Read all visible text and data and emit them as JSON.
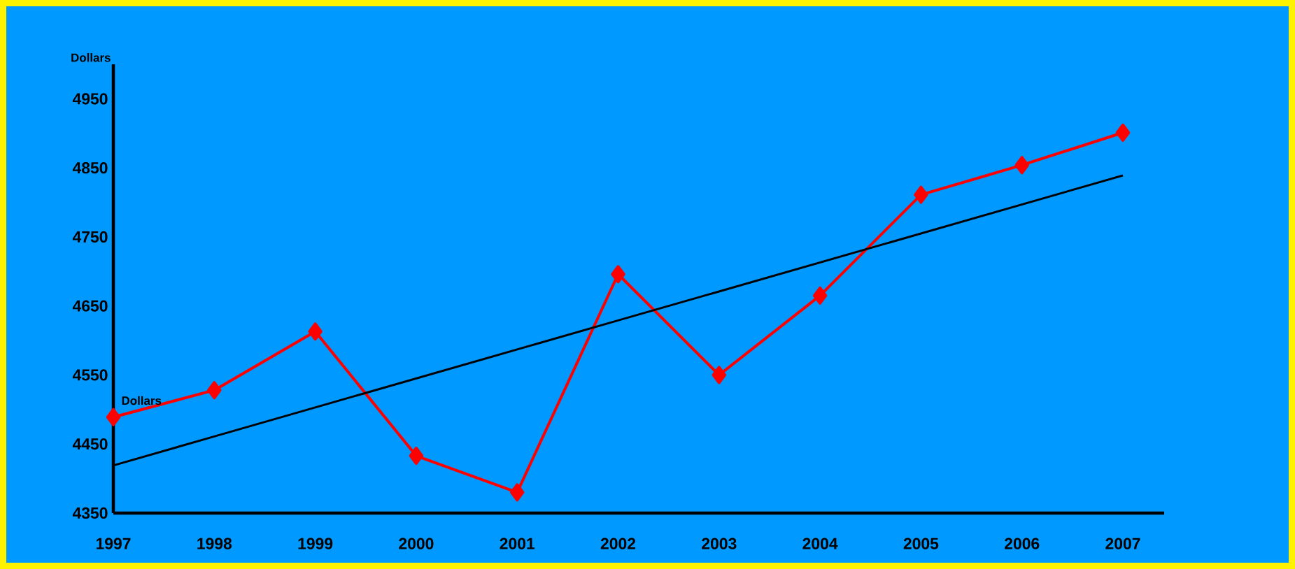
{
  "chart_data": {
    "type": "line",
    "ylabel": "Dollars",
    "categories": [
      "1997",
      "1998",
      "1999",
      "2000",
      "2001",
      "2002",
      "2003",
      "2004",
      "2005",
      "2006",
      "2007"
    ],
    "series": [
      {
        "name": "Dollars",
        "color": "#ff0000",
        "marker": "diamond",
        "values": [
          4489,
          4528,
          4613,
          4433,
          4380,
          4696,
          4550,
          4665,
          4811,
          4854,
          4901
        ]
      },
      {
        "type": "line",
        "color": "#000000",
        "marker": "none",
        "values": [
          4419,
          4461,
          4503,
          4545,
          4587,
          4629,
          4671,
          4713,
          4755,
          4797,
          4839
        ]
      }
    ],
    "ylim": [
      4350,
      5000
    ],
    "yticks": [
      4350,
      4450,
      4550,
      4650,
      4750,
      4850,
      4950
    ],
    "grid": false
  }
}
